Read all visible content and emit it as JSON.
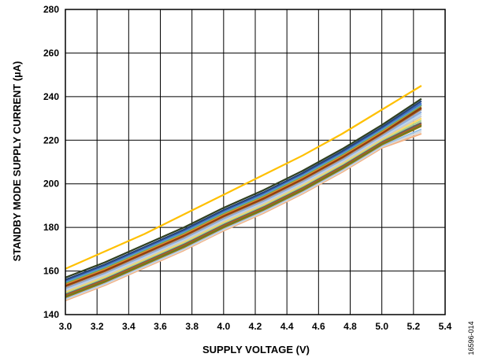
{
  "chart_data": {
    "type": "line",
    "xlabel": "SUPPLY VOLTAGE (V)",
    "ylabel": "STANDBY MODE SUPPLY CURRENT (µA)",
    "xlim": [
      3.0,
      5.4
    ],
    "ylim": [
      140,
      280
    ],
    "x_ticks": [
      "3.0",
      "3.2",
      "3.4",
      "3.6",
      "3.8",
      "4.0",
      "4.2",
      "4.4",
      "4.6",
      "4.8",
      "5.0",
      "5.2",
      "5.4"
    ],
    "y_ticks": [
      "140",
      "160",
      "180",
      "200",
      "220",
      "240",
      "260",
      "280"
    ],
    "grid": true,
    "legend": "none",
    "figure_id": "16596-014",
    "x": [
      3.0,
      3.25,
      3.5,
      3.75,
      4.0,
      4.25,
      4.5,
      4.75,
      5.0,
      5.25
    ],
    "series": [
      {
        "color": "#FFC000",
        "values": [
          161,
          169,
          177,
          186,
          195,
          204,
          213,
          223,
          234,
          245
        ]
      },
      {
        "color": "#2E3F20",
        "values": [
          157,
          164,
          172,
          180,
          189,
          197,
          206,
          216,
          227,
          239
        ]
      },
      {
        "color": "#264478",
        "values": [
          156,
          163,
          171,
          179,
          188,
          196,
          205,
          215,
          226,
          238
        ]
      },
      {
        "color": "#4472C4",
        "values": [
          155.5,
          162.5,
          170.5,
          178.5,
          187.5,
          195.5,
          204.5,
          214.5,
          225.5,
          237
        ]
      },
      {
        "color": "#5B9BD5",
        "values": [
          155,
          162,
          170,
          178,
          187,
          195,
          204,
          214,
          225,
          236.5
        ]
      },
      {
        "color": "#70AD47",
        "values": [
          154.5,
          161.5,
          169.5,
          177.5,
          186.5,
          194.5,
          203.5,
          213.5,
          224.5,
          236
        ]
      },
      {
        "color": "#ED7D31",
        "values": [
          154,
          161,
          169,
          177,
          186,
          194,
          203,
          213,
          224,
          236
        ]
      },
      {
        "color": "#843C0C",
        "values": [
          153.5,
          160.5,
          168.5,
          176.5,
          185.5,
          193.5,
          202.5,
          212.5,
          223.5,
          235
        ]
      },
      {
        "color": "#9E480E",
        "values": [
          153,
          160,
          168,
          176,
          185,
          193,
          202,
          212,
          223,
          234.5
        ]
      },
      {
        "color": "#A5A5A5",
        "values": [
          152.5,
          159.5,
          167.5,
          175.5,
          184.5,
          192.5,
          201.5,
          211.5,
          222.5,
          234
        ]
      },
      {
        "color": "#8FAADC",
        "values": [
          152,
          159,
          167,
          175,
          184,
          192,
          201,
          211,
          222,
          233
        ]
      },
      {
        "color": "#BDD7EE",
        "values": [
          151.5,
          158.5,
          166.5,
          174.5,
          183.5,
          191.5,
          200.5,
          210.5,
          221.5,
          232
        ]
      },
      {
        "color": "#C9C9C9",
        "values": [
          151,
          158,
          166,
          174,
          183,
          191,
          200,
          210,
          221,
          231
        ]
      },
      {
        "color": "#FFD966",
        "values": [
          150.5,
          157.5,
          165.5,
          173.5,
          182.5,
          190.5,
          199.5,
          209.5,
          220.5,
          230
        ]
      },
      {
        "color": "#A9D18E",
        "values": [
          150,
          157,
          165,
          173,
          182,
          190,
          199,
          209,
          220,
          229
        ]
      },
      {
        "color": "#636363",
        "values": [
          149.5,
          156.5,
          164.5,
          172.5,
          181.5,
          189.5,
          198.5,
          208.5,
          219.5,
          228
        ]
      },
      {
        "color": "#C55A11",
        "values": [
          149,
          156,
          164,
          172,
          181,
          189,
          198,
          208,
          219,
          227.5
        ]
      },
      {
        "color": "#548235",
        "values": [
          148.5,
          155.5,
          163.5,
          171.5,
          180.5,
          188.5,
          197.5,
          207.5,
          218.5,
          227
        ]
      },
      {
        "color": "#997300",
        "values": [
          148,
          155,
          163,
          171,
          180,
          188,
          197,
          207,
          218,
          226.5
        ]
      },
      {
        "color": "#9DC3E6",
        "values": [
          147.5,
          154.5,
          162.5,
          170.5,
          179.5,
          187.5,
          196.5,
          206.5,
          217.5,
          225
        ]
      },
      {
        "color": "#D9D9D9",
        "values": [
          147,
          154,
          162,
          170,
          179,
          187,
          196,
          206,
          217,
          224
        ]
      },
      {
        "color": "#F4B183",
        "values": [
          146.5,
          153.5,
          161.5,
          169.5,
          178.5,
          186.5,
          195.5,
          205.5,
          216.5,
          223
        ]
      }
    ]
  }
}
